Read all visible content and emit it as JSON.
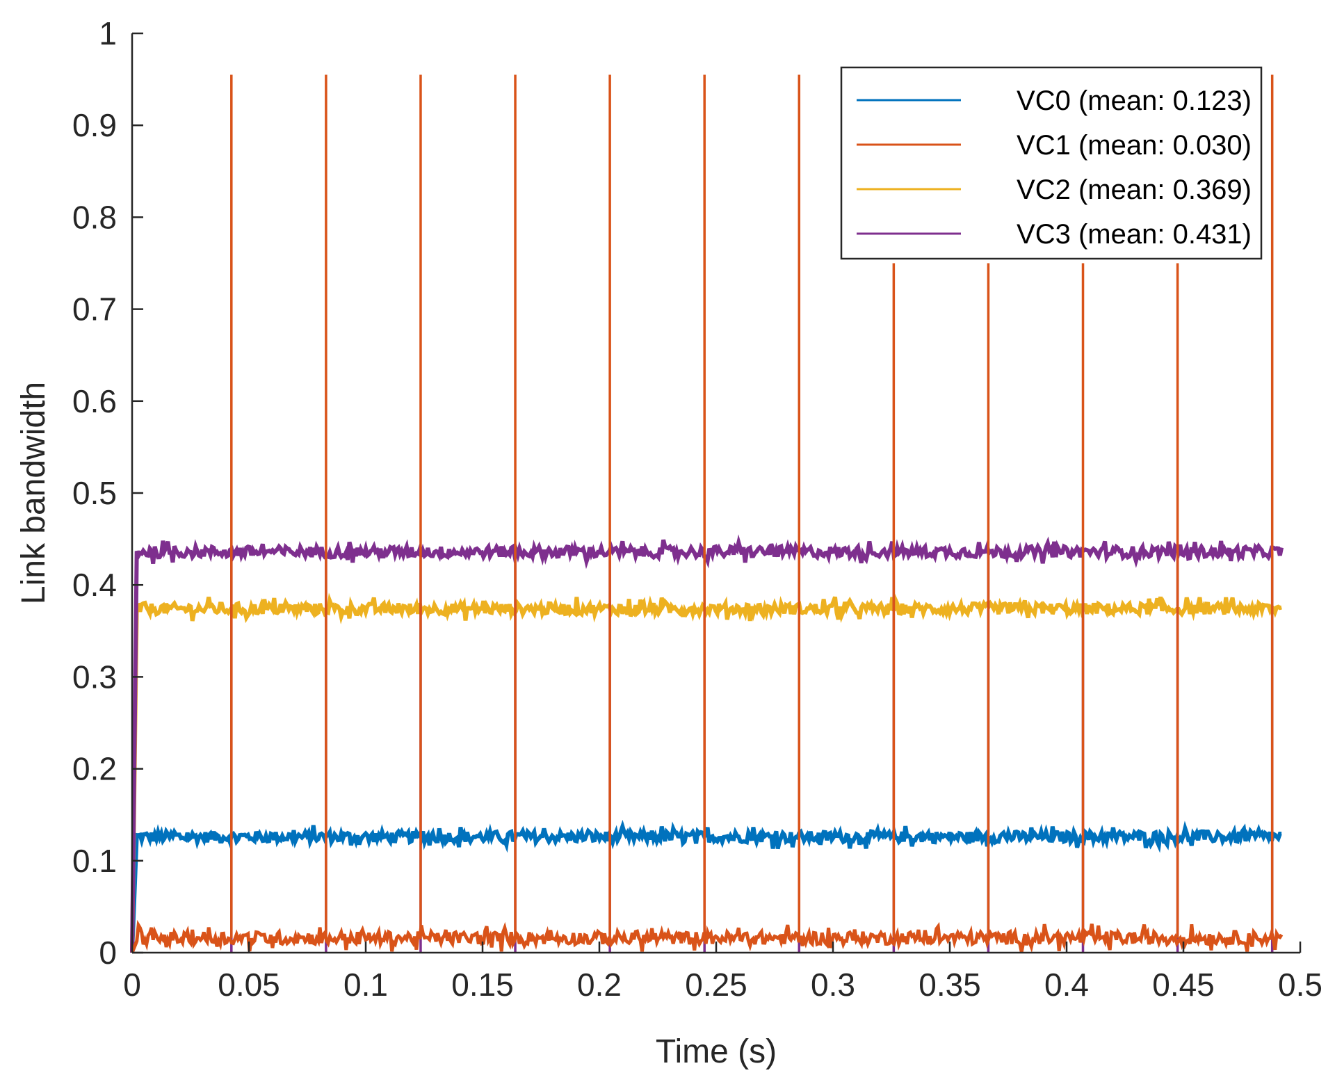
{
  "chart_data": {
    "type": "line",
    "title": "",
    "xlabel": "Time (s)",
    "ylabel": "Link bandwidth",
    "xlim": [
      0,
      0.5
    ],
    "ylim": [
      0,
      1
    ],
    "xticks": [
      0,
      0.05,
      0.1,
      0.15,
      0.2,
      0.25,
      0.3,
      0.35,
      0.4,
      0.45,
      0.5
    ],
    "xtick_labels": [
      "0",
      "0.05",
      "0.1",
      "0.15",
      "0.2",
      "0.25",
      "0.3",
      "0.35",
      "0.4",
      "0.45",
      "0.5"
    ],
    "yticks": [
      0,
      0.1,
      0.2,
      0.3,
      0.4,
      0.5,
      0.6,
      0.7,
      0.8,
      0.9,
      1
    ],
    "ytick_labels": [
      "0",
      "0.1",
      "0.2",
      "0.3",
      "0.4",
      "0.5",
      "0.6",
      "0.7",
      "0.8",
      "0.9",
      "1"
    ],
    "grid": false,
    "legend_position": "top-right",
    "series": [
      {
        "name": "VC0",
        "label": "VC0 (mean: 0.123)",
        "color": "#0072BD",
        "baseline": 0.126,
        "noise": 0.006
      },
      {
        "name": "VC1",
        "label": "VC1 (mean: 0.030)",
        "color": "#D95319",
        "baseline": 0.016,
        "noise": 0.007,
        "spike_times": [
          0.0425,
          0.083,
          0.1235,
          0.164,
          0.2045,
          0.245,
          0.2855,
          0.326,
          0.3665,
          0.407,
          0.4475,
          0.488
        ],
        "spike_peaks": [
          0.955,
          0.955,
          0.955,
          0.955,
          0.955,
          0.955,
          0.955,
          0.75,
          0.75,
          0.75,
          0.75,
          0.955
        ]
      },
      {
        "name": "VC2",
        "label": "VC2 (mean: 0.369)",
        "color": "#EDB120",
        "baseline": 0.374,
        "noise": 0.006
      },
      {
        "name": "VC3",
        "label": "VC3 (mean: 0.431)",
        "color": "#7E2F8E",
        "baseline": 0.436,
        "noise": 0.006,
        "dip_times": [
          0.0425,
          0.083,
          0.1235,
          0.164,
          0.2045,
          0.245,
          0.2855,
          0.326,
          0.3665,
          0.407,
          0.4475,
          0.488
        ],
        "dip_value": 0.0
      }
    ],
    "end_time": 0.492
  }
}
